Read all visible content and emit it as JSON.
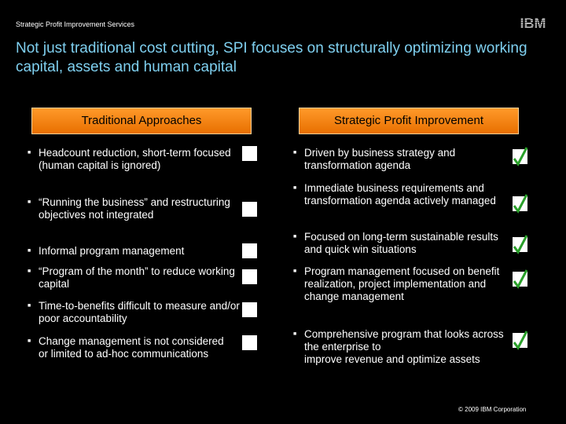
{
  "header": {
    "label": "Strategic Profit Improvement Services",
    "logo_text": "IBM"
  },
  "title": "Not just traditional cost cutting, SPI focuses on  structurally optimizing working capital, assets and human capital",
  "left": {
    "heading": "Traditional Approaches",
    "bullets": [
      "Headcount reduction, short-term focused\n(human capital is ignored)",
      "“Running the business” and restructuring\nobjectives not integrated",
      "Informal program management",
      "“Program of the month” to reduce working capital",
      "Time-to-benefits difficult to measure and/or poor accountability",
      "Change management is not considered\nor limited to ad-hoc communications"
    ]
  },
  "right": {
    "heading": "Strategic Profit Improvement",
    "bullets": [
      "Driven by business strategy and transformation agenda",
      "Immediate business requirements and transformation agenda actively managed",
      "Focused on long-term sustainable results and quick win situations",
      "Program management focused on benefit realization, project implementation and change management",
      "Comprehensive program that looks across the enterprise to\nimprove revenue and optimize assets"
    ]
  },
  "footer": "© 2009 IBM Corporation",
  "colors": {
    "title": "#7fd0f0",
    "header_orange": "#f08010",
    "check_green": "#2aa02a"
  },
  "icons": {
    "bullet": "square-bullet-icon",
    "left_marker": "empty-checkbox-icon",
    "right_marker": "checkmark-icon"
  }
}
